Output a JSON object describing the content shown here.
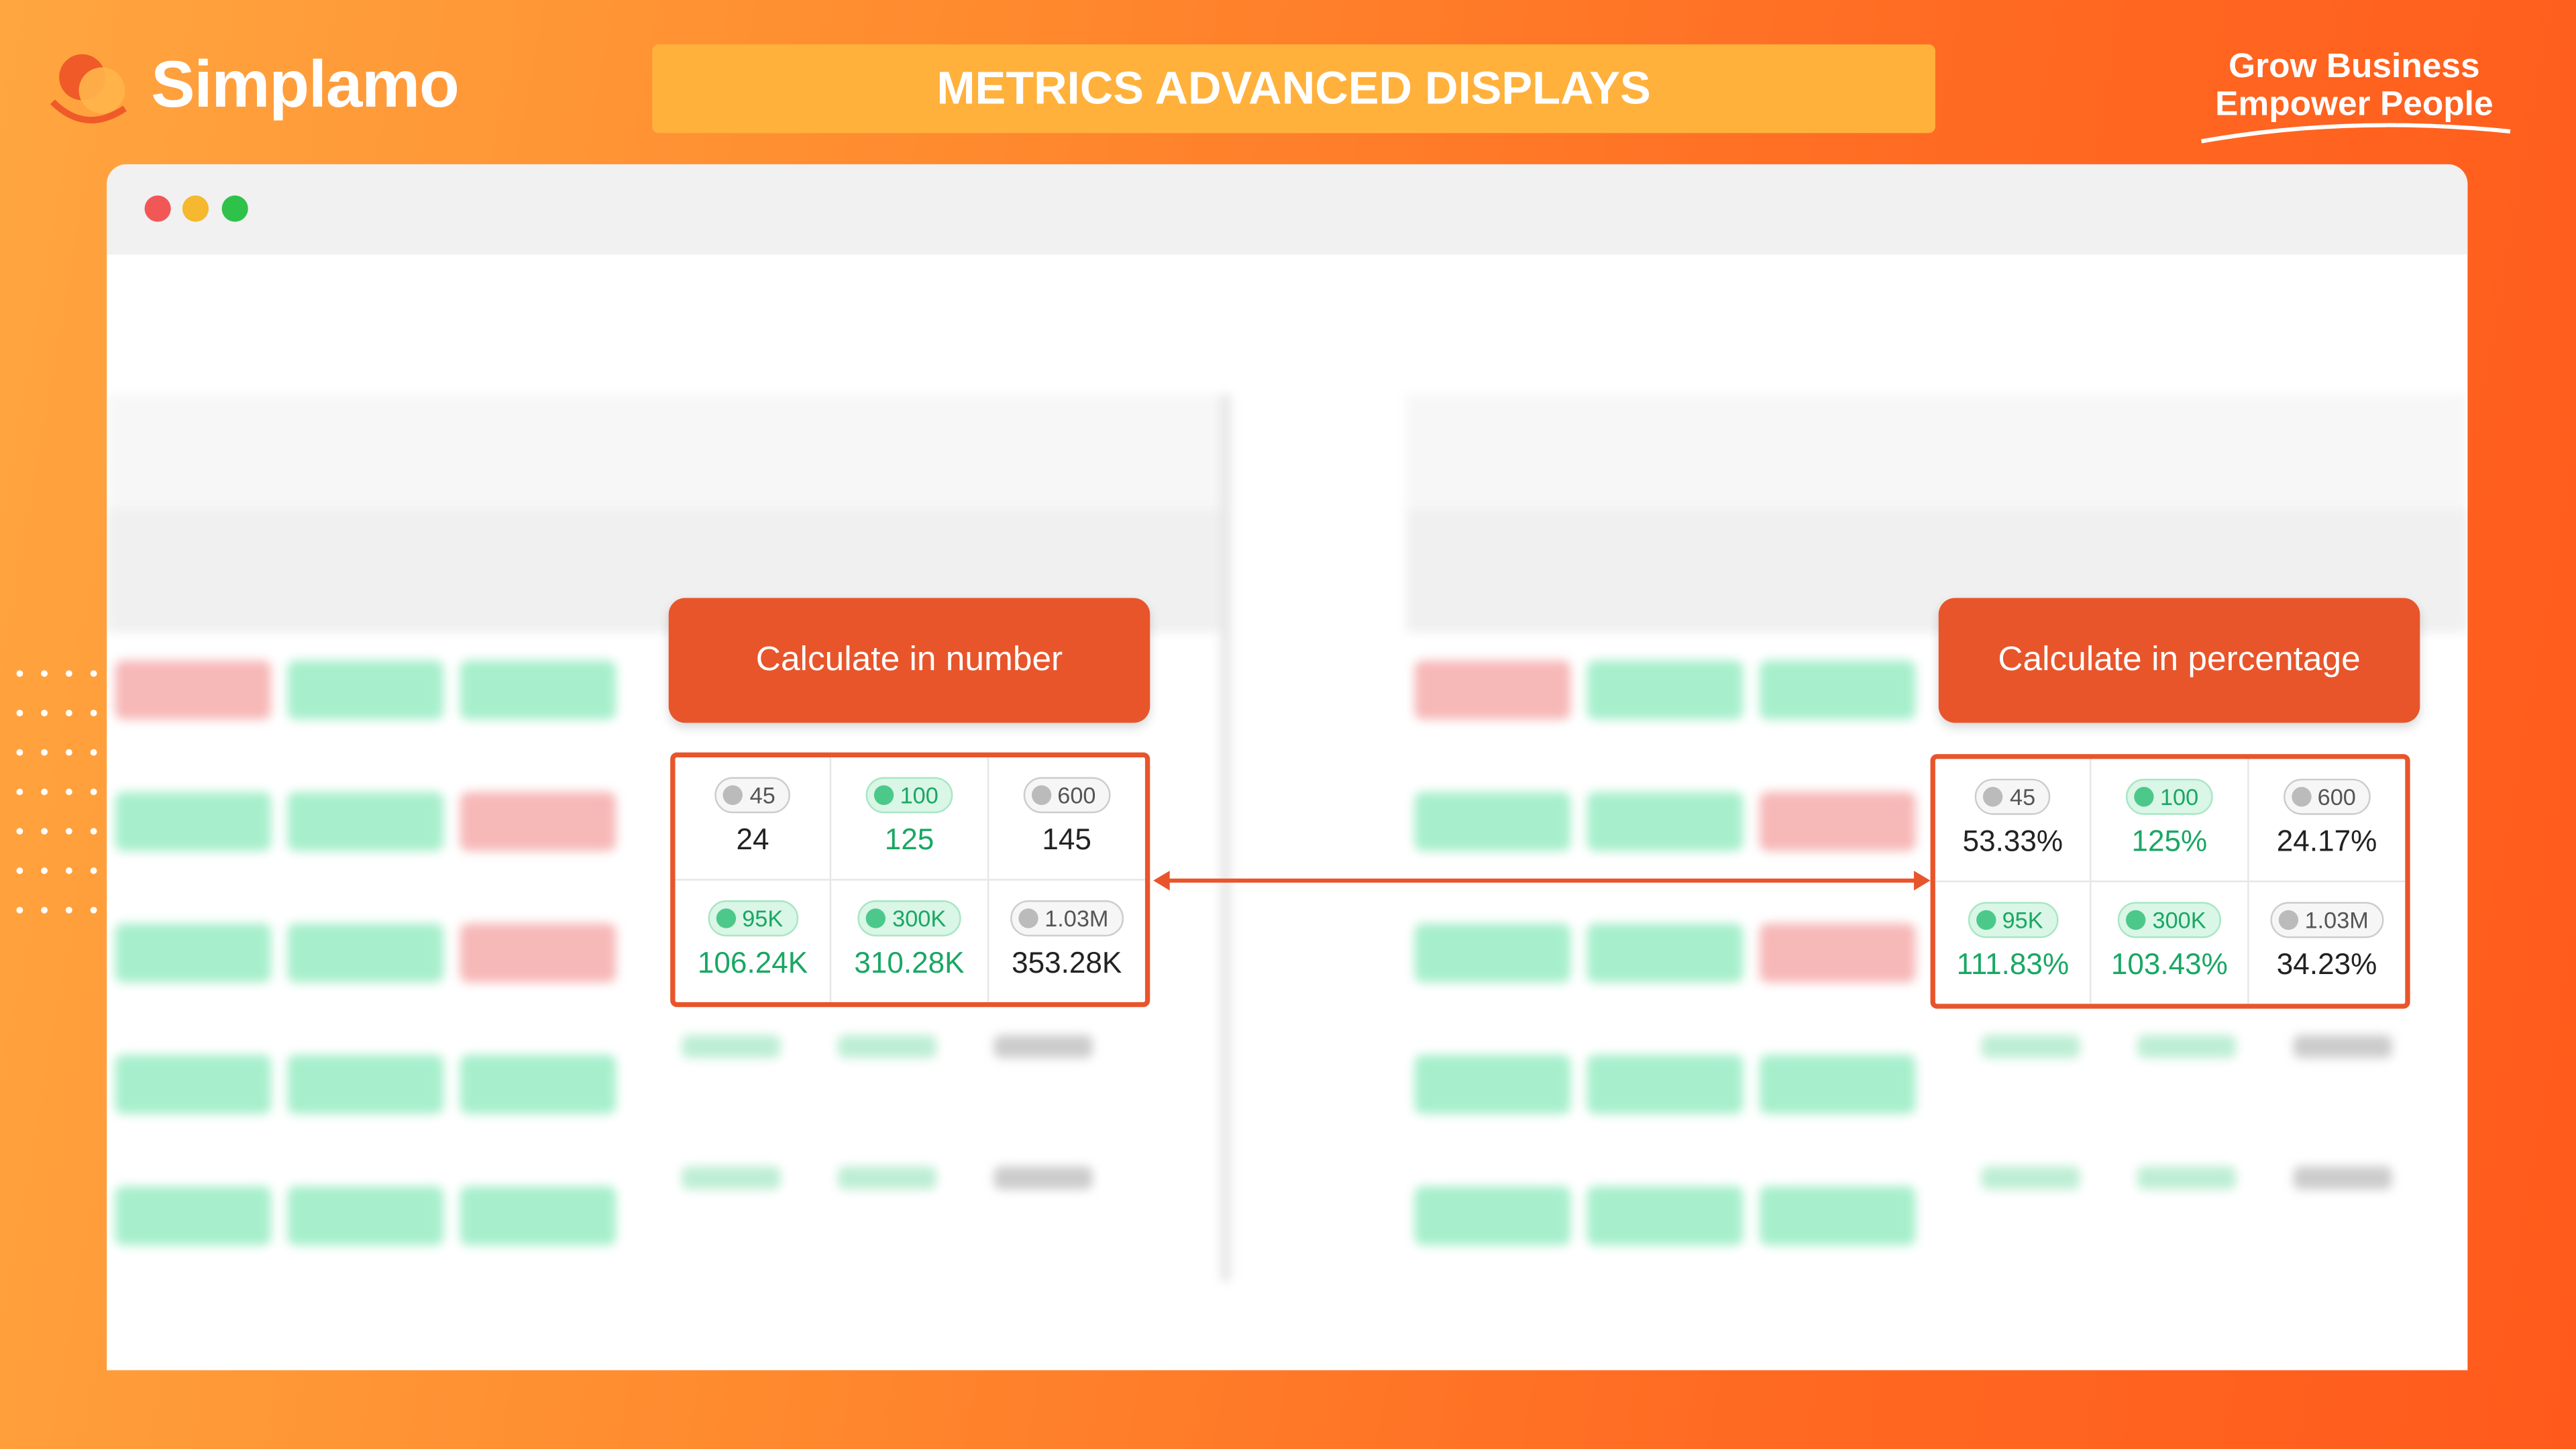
{
  "brand": {
    "logo": "Simplamo"
  },
  "header": {
    "title": "METRICS ADVANCED DISPLAYS",
    "tagline": [
      "Grow Business",
      "Empower People"
    ]
  },
  "panels": [
    {
      "label": "Calculate in number",
      "rows": [
        [
          {
            "target": "45",
            "value": "24",
            "highlight": false
          },
          {
            "target": "100",
            "value": "125",
            "highlight": true
          },
          {
            "target": "600",
            "value": "145",
            "highlight": false
          }
        ],
        [
          {
            "target": "95K",
            "value": "106.24K",
            "highlight": true
          },
          {
            "target": "300K",
            "value": "310.28K",
            "highlight": true
          },
          {
            "target": "1.03M",
            "value": "353.28K",
            "highlight": false
          }
        ]
      ]
    },
    {
      "label": "Calculate in percentage",
      "rows": [
        [
          {
            "target": "45",
            "value": "53.33%",
            "highlight": false
          },
          {
            "target": "100",
            "value": "125%",
            "highlight": true
          },
          {
            "target": "600",
            "value": "24.17%",
            "highlight": false
          }
        ],
        [
          {
            "target": "95K",
            "value": "111.83%",
            "highlight": true
          },
          {
            "target": "300K",
            "value": "103.43%",
            "highlight": true
          },
          {
            "target": "1.03M",
            "value": "34.23%",
            "highlight": false
          }
        ]
      ]
    }
  ]
}
